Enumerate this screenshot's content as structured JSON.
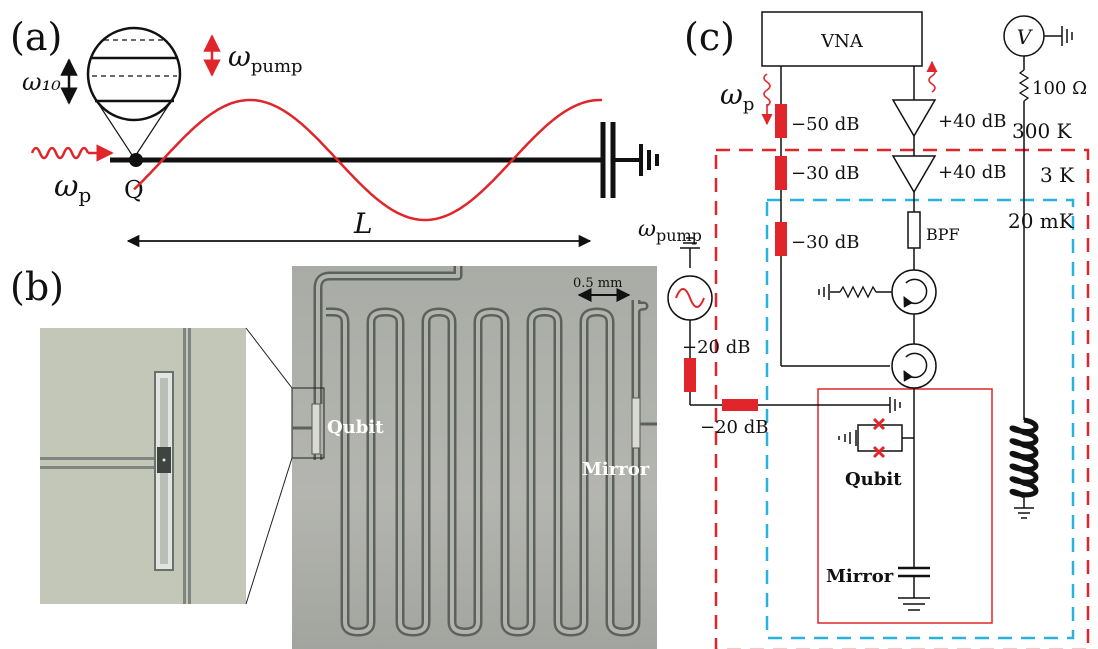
{
  "panels": {
    "a": {
      "label": "(a)"
    },
    "b": {
      "label": "(b)"
    },
    "c": {
      "label": "(c)"
    }
  },
  "panel_a": {
    "omega_10": "ω₁₀",
    "omega_pump": "ω",
    "omega_pump_sub": "pump",
    "omega_p": "ω",
    "omega_p_sub": "p",
    "qubit_node": "Q",
    "length": "L"
  },
  "panel_b": {
    "scale_bar": "0.5 mm",
    "qubit": "Qubit",
    "mirror": "Mirror"
  },
  "panel_c": {
    "vna": "VNA",
    "voltmeter": "V",
    "resistor": "100 Ω",
    "temp_300k": "300 K",
    "temp_3k": "3 K",
    "temp_20mk": "20 mK",
    "omega_p": "ω",
    "omega_p_sub": "p",
    "omega_pump": "ω",
    "omega_pump_sub": "pump",
    "att_1": "−50 dB",
    "att_2": "−30 dB",
    "att_3": "−30 dB",
    "att_4": "−20 dB",
    "att_5": "−20 dB",
    "amp_1": "+40 dB",
    "amp_2": "+40 dB",
    "bpf": "BPF",
    "qubit": "Qubit",
    "mirror": "Mirror"
  },
  "colors": {
    "red": "#e0262b",
    "blue": "#29b2dd",
    "black": "#111111"
  }
}
